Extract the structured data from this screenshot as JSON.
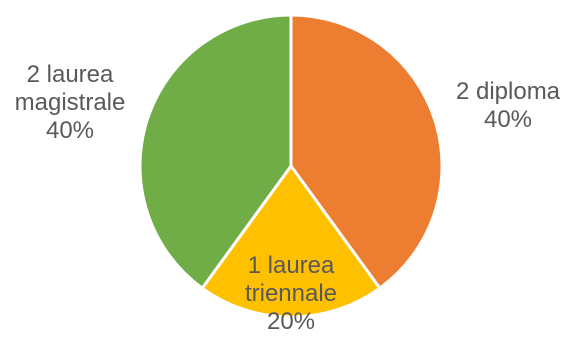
{
  "chart_data": {
    "type": "pie",
    "slices": [
      {
        "label_lines": [
          "2 diploma"
        ],
        "percent_text": "40%",
        "value": 40,
        "color": "#ED7D31"
      },
      {
        "label_lines": [
          "1 laurea",
          "triennale"
        ],
        "percent_text": "20%",
        "value": 20,
        "color": "#FFC000"
      },
      {
        "label_lines": [
          "2 laurea",
          "magistrale"
        ],
        "percent_text": "40%",
        "value": 40,
        "color": "#70AD47"
      }
    ],
    "start_angle_deg": 0,
    "direction": "clockwise"
  }
}
